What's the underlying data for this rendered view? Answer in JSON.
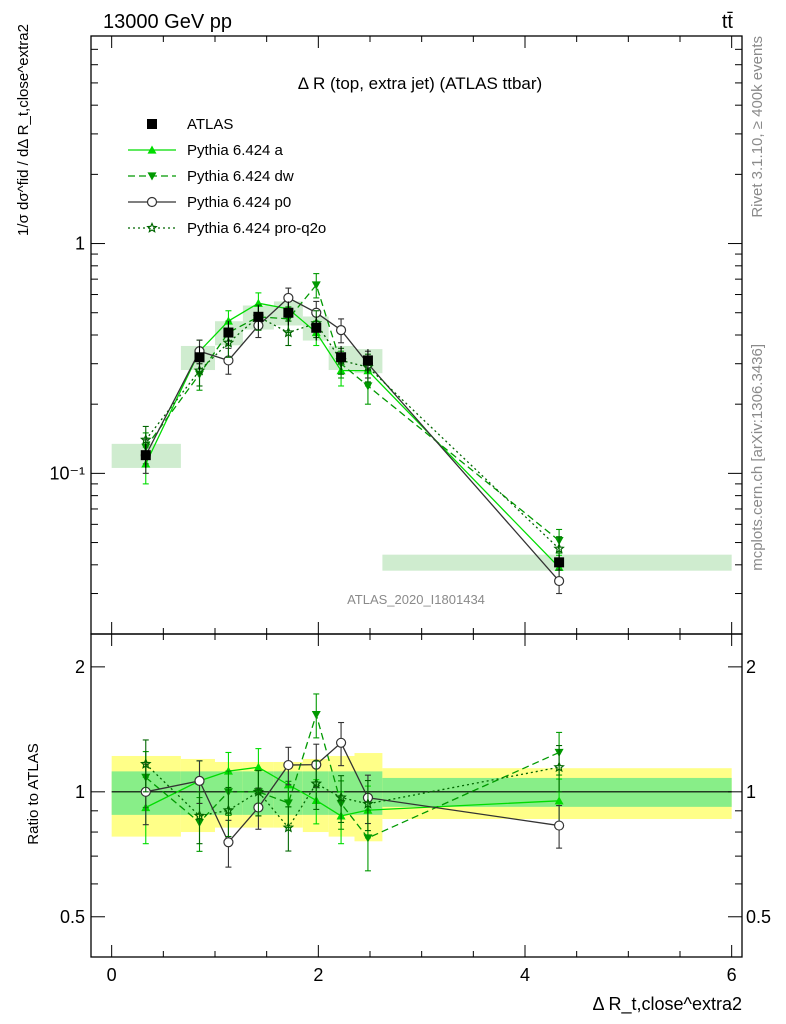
{
  "header": {
    "energy_label": "13000 GeV pp",
    "process_label": "tt̄"
  },
  "side_labels": {
    "rivet": "Rivet 3.1.10, ≥ 400k events",
    "mcplots": "mcplots.cern.ch [arXiv:1306.3436]"
  },
  "chart_data": {
    "type": "line",
    "title": "Δ R (top, extra jet) (ATLAS ttbar)",
    "watermark": "ATLAS_2020_I1801434",
    "xlabel": "Δ R_t,close^extra2",
    "ylabel_main": "1/σ dσ^fid / dΔ R_t,close^extra2",
    "ylabel_ratio": "Ratio to ATLAS",
    "xlim": [
      -0.2,
      6.1
    ],
    "ylim_main": [
      0.02,
      8
    ],
    "ylim_ratio": [
      0.4,
      2.4
    ],
    "log_y": true,
    "x_ticks": [
      "0",
      "2",
      "4",
      "6"
    ],
    "main_y_ticks": [
      "10⁻¹",
      "1"
    ],
    "ratio_y_ticks": [
      "0.5",
      "1",
      "2"
    ],
    "legend_position": "top-left",
    "data": {
      "name": "ATLAS",
      "color": "#000000",
      "x": [
        0.33,
        0.85,
        1.13,
        1.42,
        1.71,
        1.98,
        2.22,
        2.48,
        4.33
      ],
      "x_low": [
        0.0,
        0.67,
        1.0,
        1.27,
        1.57,
        1.85,
        2.1,
        2.35,
        2.62
      ],
      "x_high": [
        0.67,
        1.0,
        1.27,
        1.57,
        1.85,
        2.1,
        2.35,
        2.62,
        6.0
      ],
      "y": [
        0.12,
        0.32,
        0.41,
        0.48,
        0.5,
        0.43,
        0.32,
        0.31,
        0.041
      ],
      "band_stat": [
        0.12,
        0.12,
        0.12,
        0.12,
        0.12,
        0.12,
        0.12,
        0.12,
        0.08
      ],
      "band_total": [
        0.22,
        0.2,
        0.18,
        0.18,
        0.18,
        0.2,
        0.22,
        0.24,
        0.14
      ]
    },
    "series": [
      {
        "name": "Pythia 6.424 a",
        "color": "#00dd00",
        "dash": "",
        "marker": "triangle-up",
        "x": [
          0.33,
          0.85,
          1.13,
          1.42,
          1.71,
          1.98,
          2.22,
          2.48,
          4.33
        ],
        "y": [
          0.11,
          0.34,
          0.46,
          0.55,
          0.52,
          0.41,
          0.28,
          0.28,
          0.039
        ],
        "err": [
          0.02,
          0.04,
          0.05,
          0.06,
          0.06,
          0.05,
          0.04,
          0.04,
          0.005
        ]
      },
      {
        "name": "Pythia 6.424 dw",
        "color": "#009900",
        "dash": "7,4",
        "marker": "triangle-down",
        "x": [
          0.33,
          0.85,
          1.13,
          1.42,
          1.71,
          1.98,
          2.22,
          2.48,
          4.33
        ],
        "y": [
          0.13,
          0.27,
          0.41,
          0.48,
          0.47,
          0.66,
          0.3,
          0.24,
          0.051
        ],
        "err": [
          0.02,
          0.04,
          0.05,
          0.06,
          0.06,
          0.08,
          0.04,
          0.04,
          0.006
        ]
      },
      {
        "name": "Pythia 6.424 p0",
        "color": "#333333",
        "dash": "",
        "marker": "circle-open",
        "x": [
          0.33,
          0.85,
          1.13,
          1.42,
          1.71,
          1.98,
          2.22,
          2.48,
          4.33
        ],
        "y": [
          0.12,
          0.34,
          0.31,
          0.44,
          0.58,
          0.5,
          0.42,
          0.3,
          0.034
        ],
        "err": [
          0.02,
          0.04,
          0.04,
          0.05,
          0.06,
          0.06,
          0.05,
          0.04,
          0.004
        ]
      },
      {
        "name": "Pythia 6.424 pro-q2o",
        "color": "#006600",
        "dash": "2,3",
        "marker": "star-open",
        "x": [
          0.33,
          0.85,
          1.13,
          1.42,
          1.71,
          1.98,
          2.22,
          2.48,
          4.33
        ],
        "y": [
          0.14,
          0.28,
          0.37,
          0.48,
          0.41,
          0.45,
          0.31,
          0.29,
          0.047
        ],
        "err": [
          0.02,
          0.04,
          0.05,
          0.06,
          0.05,
          0.06,
          0.04,
          0.04,
          0.006
        ]
      }
    ]
  }
}
